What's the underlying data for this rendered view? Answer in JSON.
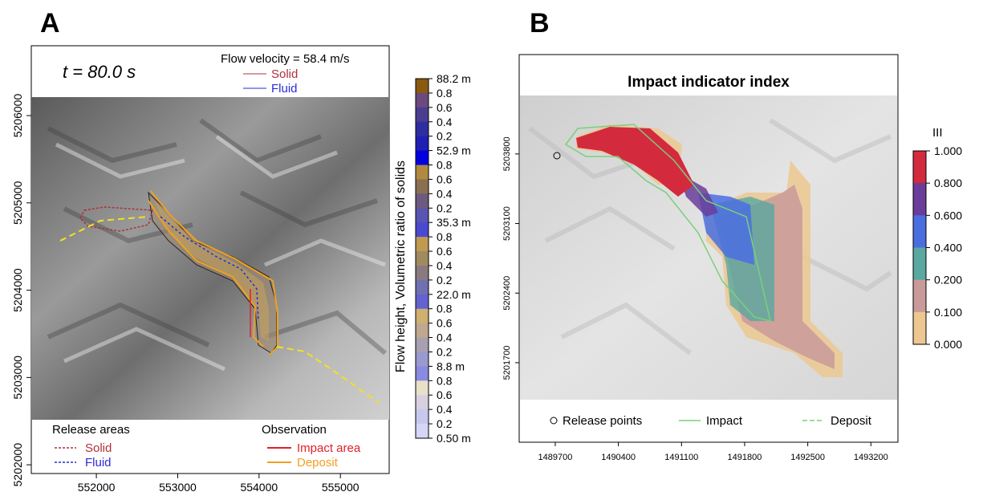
{
  "panel_a": {
    "letter": "A",
    "time_label": "t = 80.0 s",
    "velocity_label": "Flow velocity = 58.4 m/s",
    "arrow_legend": [
      {
        "label": "Solid",
        "color": "#b0303a"
      },
      {
        "label": "Fluid",
        "color": "#2a2ad6"
      }
    ],
    "release_title": "Release areas",
    "release_items": [
      {
        "label": "Solid",
        "color": "#b0303a"
      },
      {
        "label": "Fluid",
        "color": "#2a2ad6"
      }
    ],
    "observation_title": "Observation",
    "observation_items": [
      {
        "label": "Impact area",
        "color": "#e0202a"
      },
      {
        "label": "Deposit",
        "color": "#f0a020"
      }
    ],
    "colorbar_title": "Flow height, Volumetric ratio of solids",
    "colorbar_labels": [
      "88.2 m",
      "0.8",
      "0.6",
      "0.4",
      "0.2",
      "52.9 m",
      "0.8",
      "0.6",
      "0.4",
      "0.2",
      "35.3 m",
      "0.8",
      "0.6",
      "0.4",
      "0.2",
      "22.0 m",
      "0.8",
      "0.6",
      "0.4",
      "0.2",
      "8.8 m",
      "0.8",
      "0.6",
      "0.4",
      "0.2",
      "0.50 m"
    ]
  },
  "panel_b": {
    "letter": "B",
    "title": "Impact indicator index",
    "legend_title": "III",
    "legend_labels": [
      "1.000",
      "0.800",
      "0.600",
      "0.400",
      "0.200",
      "0.100",
      "0.000"
    ],
    "legend_colors": [
      "#d42a3e",
      "#6a3d9a",
      "#4a6ee0",
      "#5aa8a0",
      "#c99a9a",
      "#ecc890"
    ],
    "bottom_legend": [
      {
        "label": "Release points"
      },
      {
        "label": "Impact"
      },
      {
        "label": "Deposit"
      }
    ]
  },
  "chart_data": [
    {
      "type": "heatmap",
      "title": "",
      "xlabel": "",
      "ylabel": "",
      "x_ticks": [
        "552000",
        "553000",
        "554000",
        "555000"
      ],
      "y_ticks": [
        "5202000",
        "5203000",
        "5204000",
        "5205000",
        "5206000"
      ],
      "xlim": [
        551200,
        555600
      ],
      "ylim": [
        5201900,
        5206800
      ],
      "annotations": [
        "t = 80.0 s",
        "Flow velocity = 58.4 m/s"
      ]
    },
    {
      "type": "heatmap",
      "title": "Impact indicator index",
      "xlabel": "",
      "ylabel": "",
      "x_ticks": [
        "1489700",
        "1490400",
        "1491100",
        "1491800",
        "1492500",
        "1493200"
      ],
      "y_ticks": [
        "5201700",
        "5202400",
        "5203100",
        "5203800"
      ],
      "xlim": [
        1489300,
        1493500
      ],
      "ylim": [
        5200900,
        5204800
      ],
      "legend": [
        "Release points",
        "Impact",
        "Deposit"
      ]
    }
  ]
}
